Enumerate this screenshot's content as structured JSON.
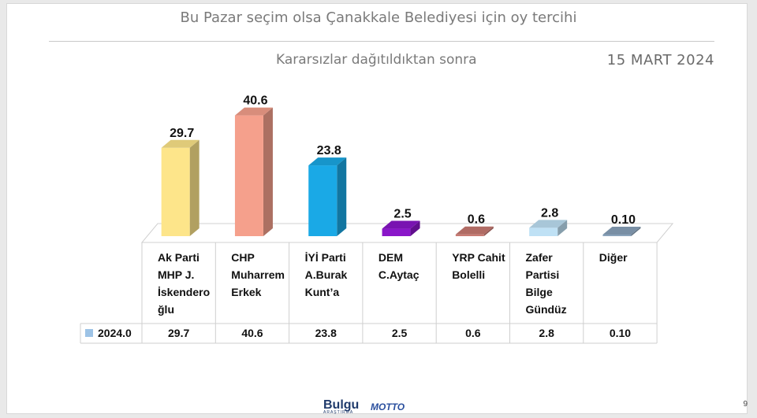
{
  "header": {
    "title": "Bu Pazar seçim olsa Çanakkale Belediyesi için oy tercihi",
    "subtitle": "Kararsızlar dağıtıldıktan sonra",
    "date": "15 MART 2024"
  },
  "footer": {
    "logo1": "Bulgu",
    "logo1_tag": "ARAŞTIRMA",
    "logo2": "MOTTO",
    "page": "9"
  },
  "chart_data": {
    "type": "bar",
    "title": "",
    "categories": [
      [
        "Ak Parti",
        "MHP J.",
        "İskendero",
        "ğlu"
      ],
      [
        "CHP",
        "Muharrem",
        "Erkek"
      ],
      [
        "İYİ Parti",
        "A.Burak",
        "Kunt’a"
      ],
      [
        "DEM",
        "C.Aytaç"
      ],
      [
        "YRP Cahit",
        "Bolelli"
      ],
      [
        "Zafer",
        "Partisi",
        "Bilge",
        "Gündüz"
      ],
      [
        "Diğer"
      ]
    ],
    "series": [
      {
        "name": "2024.0",
        "values": [
          29.7,
          40.6,
          23.8,
          2.5,
          0.6,
          2.8,
          0.1
        ],
        "value_labels": [
          "29.7",
          "40.6",
          "23.8",
          "2.5",
          "0.6",
          "2.8",
          "0.10"
        ]
      }
    ],
    "bar_colors": [
      "#fde58a",
      "#f5a08c",
      "#1aa9e6",
      "#8a16c9",
      "#c87a72",
      "#bfe1f5",
      "#8aa3bb"
    ],
    "legend_color": "#9dc3e6",
    "ylim": [
      0,
      45
    ],
    "grid": false,
    "data_table": true
  }
}
